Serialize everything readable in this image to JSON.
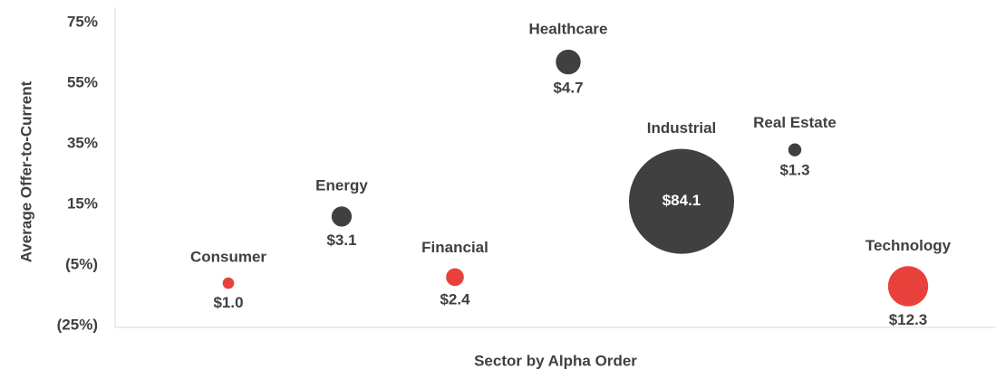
{
  "chart_data": {
    "type": "scatter",
    "x_label": "Sector by Alpha Order",
    "y_label": "Average Offer-to-Current",
    "categories": [
      "Consumer",
      "Energy",
      "Financial",
      "Healthcare",
      "Industrial",
      "Real Estate",
      "Technology"
    ],
    "values": [
      -11,
      11,
      -9,
      62,
      16,
      33,
      -12
    ],
    "sizes": [
      1.0,
      3.1,
      2.4,
      4.7,
      84.1,
      1.3,
      12.3
    ],
    "size_labels": [
      "$1.0",
      "$3.1",
      "$2.4",
      "$4.7",
      "$84.1",
      "$1.3",
      "$12.3"
    ],
    "colors": [
      "#e8403a",
      "#404040",
      "#e8403a",
      "#404040",
      "#404040",
      "#404040",
      "#e8403a"
    ],
    "ylim": [
      -25,
      75
    ],
    "yticks": [
      {
        "value": -25,
        "label": "(25%)"
      },
      {
        "value": -5,
        "label": "(5%)"
      },
      {
        "value": 15,
        "label": "15%"
      },
      {
        "value": 35,
        "label": "35%"
      },
      {
        "value": 55,
        "label": "55%"
      },
      {
        "value": 75,
        "label": "75%"
      }
    ],
    "grid": false
  }
}
